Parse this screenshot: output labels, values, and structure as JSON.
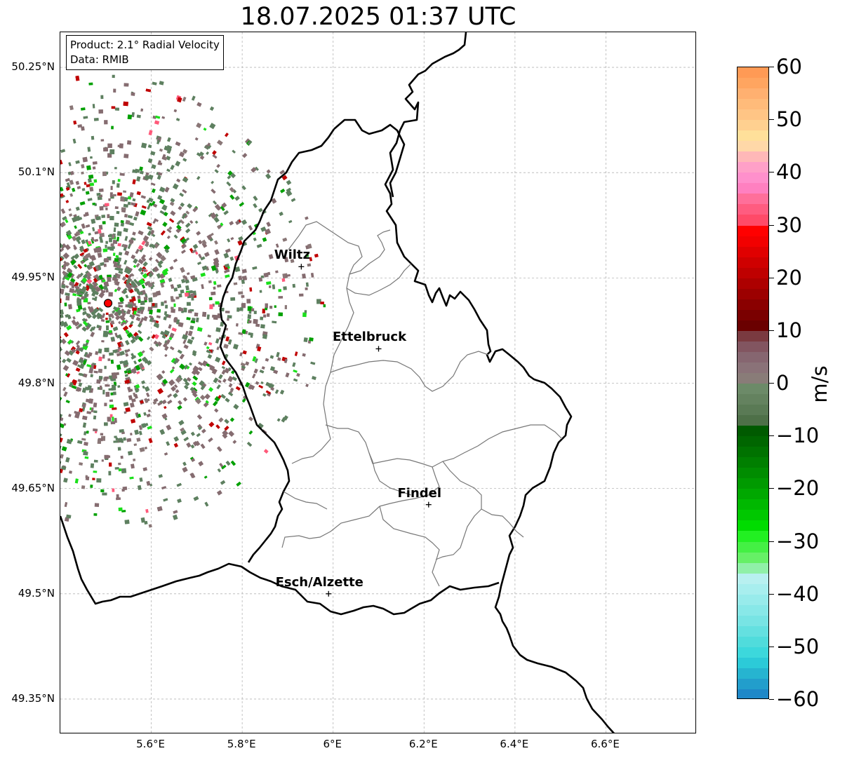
{
  "title": "18.07.2025 01:37 UTC",
  "info_box": {
    "product": "Product: 2.1° Radial Velocity",
    "data_source": "Data: RMIB"
  },
  "map": {
    "lon_range": [
      5.4,
      6.8
    ],
    "lat_range": [
      49.3,
      50.3
    ],
    "latitude_ticks": [
      {
        "value": 50.25,
        "label": "50.25°N"
      },
      {
        "value": 50.1,
        "label": "50.1°N"
      },
      {
        "value": 49.95,
        "label": "49.95°N"
      },
      {
        "value": 49.8,
        "label": "49.8°N"
      },
      {
        "value": 49.65,
        "label": "49.65°N"
      },
      {
        "value": 49.5,
        "label": "49.5°N"
      },
      {
        "value": 49.35,
        "label": "49.35°N"
      }
    ],
    "longitude_ticks": [
      {
        "value": 5.6,
        "label": "5.6°E"
      },
      {
        "value": 5.8,
        "label": "5.8°E"
      },
      {
        "value": 6.0,
        "label": "6°E"
      },
      {
        "value": 6.2,
        "label": "6.2°E"
      },
      {
        "value": 6.4,
        "label": "6.4°E"
      },
      {
        "value": 6.6,
        "label": "6.6°E"
      }
    ],
    "gridlines": true,
    "radar_site": {
      "lon": 5.505,
      "lat": 49.914,
      "marker_color": "#ff0000"
    },
    "cities": [
      {
        "name": "Wiltz",
        "lon": 5.93,
        "lat": 49.966
      },
      {
        "name": "Ettelbruck",
        "lon": 6.1,
        "lat": 49.849
      },
      {
        "name": "Findel",
        "lon": 6.21,
        "lat": 49.627
      },
      {
        "name": "Esch/Alzette",
        "lon": 5.99,
        "lat": 49.5
      }
    ],
    "velocity_field": {
      "description_free": true,
      "dominant_colors": [
        "#5e8060",
        "#856c70",
        "#8a7777",
        "#00a000",
        "#1ae01a",
        "#c00000",
        "#ff5a7a"
      ]
    }
  },
  "colorbar": {
    "unit": "m/s",
    "min": -60,
    "max": 60,
    "ticks": [
      {
        "value": 60,
        "label": "60"
      },
      {
        "value": 50,
        "label": "50"
      },
      {
        "value": 40,
        "label": "40"
      },
      {
        "value": 30,
        "label": "30"
      },
      {
        "value": 20,
        "label": "20"
      },
      {
        "value": 10,
        "label": "10"
      },
      {
        "value": 0,
        "label": "0"
      },
      {
        "value": -10,
        "label": "−10"
      },
      {
        "value": -20,
        "label": "−20"
      },
      {
        "value": -30,
        "label": "−30"
      },
      {
        "value": -40,
        "label": "−40"
      },
      {
        "value": -50,
        "label": "−50"
      },
      {
        "value": -60,
        "label": "−60"
      }
    ],
    "color_stops": [
      {
        "from": 58,
        "to": 60,
        "color": "#ff9a55"
      },
      {
        "from": 56,
        "to": 58,
        "color": "#ffa560"
      },
      {
        "from": 54,
        "to": 56,
        "color": "#ffb070"
      },
      {
        "from": 52,
        "to": 54,
        "color": "#ffbb7a"
      },
      {
        "from": 50,
        "to": 52,
        "color": "#ffc585"
      },
      {
        "from": 48,
        "to": 50,
        "color": "#ffd090"
      },
      {
        "from": 46,
        "to": 48,
        "color": "#ffe09a"
      },
      {
        "from": 44,
        "to": 46,
        "color": "#ffd8a8"
      },
      {
        "from": 42,
        "to": 44,
        "color": "#ffb8b8"
      },
      {
        "from": 40,
        "to": 42,
        "color": "#ffa0c8"
      },
      {
        "from": 38,
        "to": 40,
        "color": "#ff90cc"
      },
      {
        "from": 36,
        "to": 38,
        "color": "#ff80c0"
      },
      {
        "from": 34,
        "to": 36,
        "color": "#ff6f9a"
      },
      {
        "from": 32,
        "to": 34,
        "color": "#ff5c80"
      },
      {
        "from": 30,
        "to": 32,
        "color": "#ff4a68"
      },
      {
        "from": 28,
        "to": 30,
        "color": "#ff0000"
      },
      {
        "from": 26,
        "to": 28,
        "color": "#f20000"
      },
      {
        "from": 24,
        "to": 26,
        "color": "#e00000"
      },
      {
        "from": 22,
        "to": 24,
        "color": "#cf0000"
      },
      {
        "from": 20,
        "to": 22,
        "color": "#bf0000"
      },
      {
        "from": 18,
        "to": 20,
        "color": "#ad0000"
      },
      {
        "from": 16,
        "to": 18,
        "color": "#9c0000"
      },
      {
        "from": 14,
        "to": 16,
        "color": "#8a0000"
      },
      {
        "from": 12,
        "to": 14,
        "color": "#7a0000"
      },
      {
        "from": 10,
        "to": 12,
        "color": "#6a0000"
      },
      {
        "from": 8,
        "to": 10,
        "color": "#7a3a40"
      },
      {
        "from": 6,
        "to": 8,
        "color": "#825560"
      },
      {
        "from": 4,
        "to": 6,
        "color": "#866670"
      },
      {
        "from": 2,
        "to": 4,
        "color": "#8a7278"
      },
      {
        "from": 0,
        "to": 2,
        "color": "#897c78"
      },
      {
        "from": -2,
        "to": 0,
        "color": "#6c8a68"
      },
      {
        "from": -4,
        "to": -2,
        "color": "#64825f"
      },
      {
        "from": -6,
        "to": -4,
        "color": "#5a7a55"
      },
      {
        "from": -8,
        "to": -6,
        "color": "#4e7048"
      },
      {
        "from": -10,
        "to": -8,
        "color": "#005a00"
      },
      {
        "from": -12,
        "to": -10,
        "color": "#006600"
      },
      {
        "from": -14,
        "to": -12,
        "color": "#007200"
      },
      {
        "from": -16,
        "to": -14,
        "color": "#007f00"
      },
      {
        "from": -18,
        "to": -16,
        "color": "#008c00"
      },
      {
        "from": -20,
        "to": -18,
        "color": "#009a00"
      },
      {
        "from": -22,
        "to": -20,
        "color": "#00a800"
      },
      {
        "from": -24,
        "to": -22,
        "color": "#00b800"
      },
      {
        "from": -26,
        "to": -24,
        "color": "#00c800"
      },
      {
        "from": -28,
        "to": -26,
        "color": "#00dc00"
      },
      {
        "from": -30,
        "to": -28,
        "color": "#22f022"
      },
      {
        "from": -32,
        "to": -30,
        "color": "#44f044"
      },
      {
        "from": -34,
        "to": -32,
        "color": "#66f066"
      },
      {
        "from": -36,
        "to": -34,
        "color": "#90f0a8"
      },
      {
        "from": -38,
        "to": -36,
        "color": "#b8f0f0"
      },
      {
        "from": -40,
        "to": -38,
        "color": "#a8eeee"
      },
      {
        "from": -42,
        "to": -40,
        "color": "#98ebeb"
      },
      {
        "from": -44,
        "to": -42,
        "color": "#88e8e8"
      },
      {
        "from": -46,
        "to": -44,
        "color": "#78e4e4"
      },
      {
        "from": -48,
        "to": -46,
        "color": "#64e0e0"
      },
      {
        "from": -50,
        "to": -48,
        "color": "#50dcdc"
      },
      {
        "from": -52,
        "to": -50,
        "color": "#3cd8dc"
      },
      {
        "from": -54,
        "to": -52,
        "color": "#2ccad8"
      },
      {
        "from": -56,
        "to": -54,
        "color": "#26b4d0"
      },
      {
        "from": -58,
        "to": -56,
        "color": "#229ecc"
      },
      {
        "from": -60,
        "to": -58,
        "color": "#1f88c8"
      }
    ]
  }
}
